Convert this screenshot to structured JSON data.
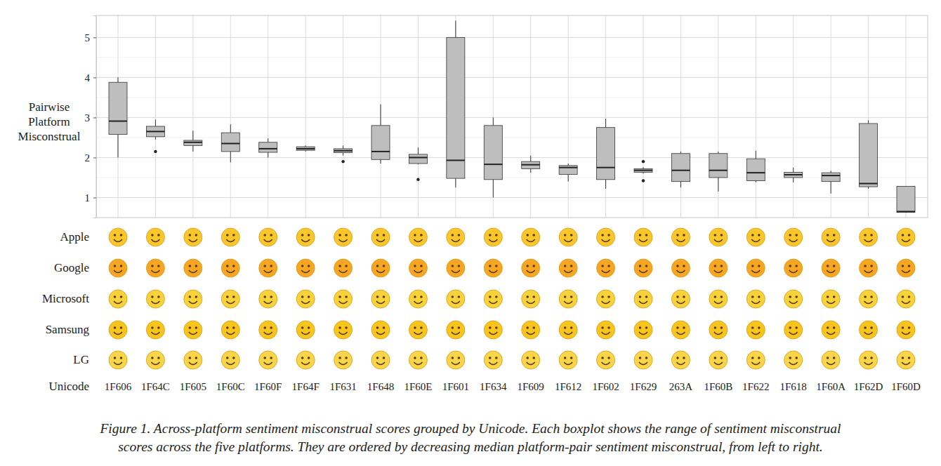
{
  "chart_data": {
    "type": "box",
    "y_label": "Pairwise Platform Misconstrual",
    "categories": [
      "1F606",
      "1F64C",
      "1F605",
      "1F60C",
      "1F60F",
      "1F64F",
      "1F631",
      "1F648",
      "1F60E",
      "1F601",
      "1F634",
      "1F609",
      "1F612",
      "1F602",
      "1F629",
      "263A",
      "1F60B",
      "1F622",
      "1F618",
      "1F60A",
      "1F62D",
      "1F60D"
    ],
    "low": [
      2.0,
      2.45,
      2.15,
      1.88,
      2.0,
      2.15,
      2.05,
      1.85,
      1.83,
      1.25,
      1.0,
      1.62,
      1.4,
      1.22,
      1.6,
      1.25,
      1.15,
      1.38,
      1.38,
      1.1,
      1.22,
      0.63
    ],
    "q1": [
      2.58,
      2.52,
      2.3,
      2.15,
      2.13,
      2.18,
      2.12,
      1.95,
      1.85,
      1.48,
      1.45,
      1.72,
      1.58,
      1.45,
      1.63,
      1.4,
      1.5,
      1.42,
      1.5,
      1.4,
      1.27,
      0.63
    ],
    "median": [
      2.91,
      2.65,
      2.38,
      2.35,
      2.22,
      2.22,
      2.17,
      2.15,
      2.0,
      1.93,
      1.83,
      1.82,
      1.75,
      1.75,
      1.68,
      1.68,
      1.68,
      1.62,
      1.57,
      1.55,
      1.35,
      0.65
    ],
    "q3": [
      3.88,
      2.78,
      2.43,
      2.62,
      2.38,
      2.27,
      2.22,
      2.8,
      2.08,
      5.0,
      2.8,
      1.9,
      1.8,
      2.75,
      1.72,
      2.1,
      2.1,
      1.97,
      1.63,
      1.62,
      2.85,
      1.28
    ],
    "high": [
      4.0,
      2.95,
      2.67,
      2.83,
      2.48,
      2.3,
      2.3,
      3.33,
      2.25,
      5.42,
      3.0,
      2.05,
      1.85,
      2.97,
      1.76,
      2.15,
      2.15,
      2.17,
      1.75,
      1.67,
      2.93,
      1.28
    ],
    "outliers": [
      [],
      [
        2.15
      ],
      [],
      [],
      [],
      [],
      [
        1.9
      ],
      [],
      [
        1.45
      ],
      [],
      [],
      [],
      [],
      [],
      [
        1.42,
        1.9
      ],
      [],
      [],
      [],
      [],
      [],
      [],
      []
    ],
    "platforms": [
      "Apple",
      "Google",
      "Microsoft",
      "Samsung",
      "LG"
    ],
    "category_label": "Unicode",
    "ylim": [
      0.5,
      5.55
    ],
    "yticks": [
      1,
      2,
      3,
      4,
      5
    ],
    "minor_yticks": [
      1.5,
      2.5,
      3.5,
      4.5
    ],
    "grid": true,
    "color": "#bebebe",
    "caption": [
      "Figure 1. Across-platform sentiment misconstrual scores grouped by Unicode. Each boxplot shows the range of sentiment misconstrual",
      "scores across the five platforms. They are ordered by decreasing median platform-pair sentiment misconstrual, from left to right."
    ]
  }
}
